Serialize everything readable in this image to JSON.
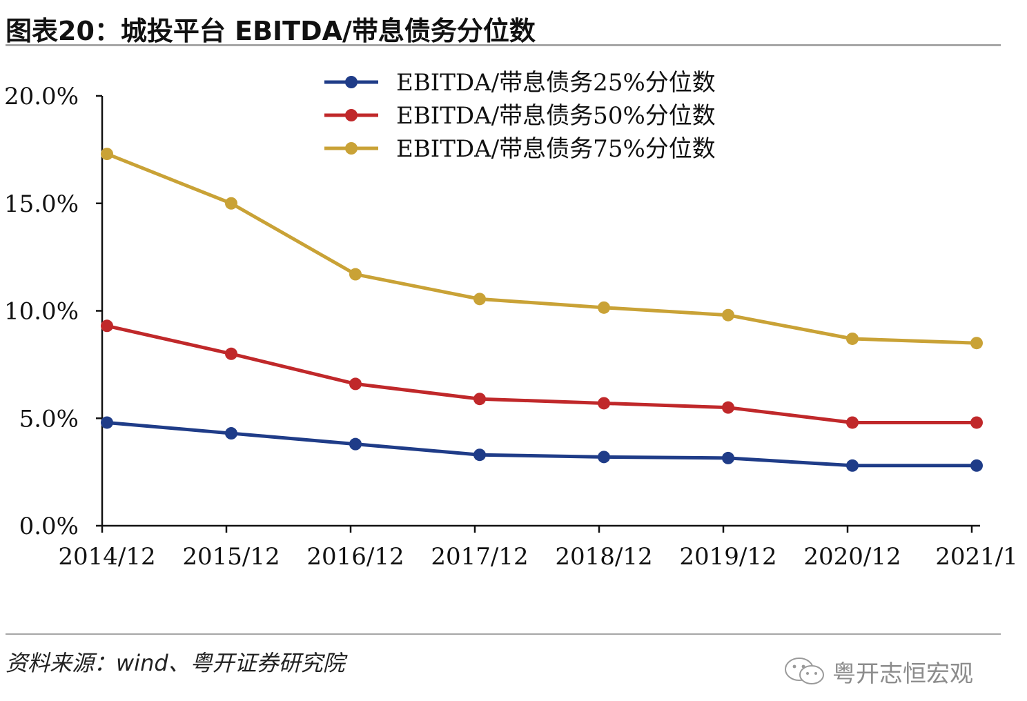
{
  "header": {
    "title": "图表20：城投平台 EBITDA/带息债务分位数"
  },
  "footer": {
    "source": "资料来源：wind、粤开证券研究院",
    "watermark": "粤开志恒宏观"
  },
  "chart_data": {
    "type": "line",
    "title": "城投平台 EBITDA/带息债务分位数",
    "xlabel": "",
    "ylabel": "",
    "ylim": [
      0,
      20
    ],
    "y_ticks": [
      "0.0%",
      "5.0%",
      "10.0%",
      "15.0%",
      "20.0%"
    ],
    "y_tick_values": [
      0,
      5,
      10,
      15,
      20
    ],
    "categories": [
      "2014/12",
      "2015/12",
      "2016/12",
      "2017/12",
      "2018/12",
      "2019/12",
      "2020/12",
      "2021/1"
    ],
    "legend_position": "top-center",
    "grid": false,
    "series": [
      {
        "name": "EBITDA/带息债务25%分位数",
        "color": "#1f3c88",
        "values": [
          4.8,
          4.3,
          3.8,
          3.3,
          3.2,
          3.15,
          2.8,
          2.8
        ]
      },
      {
        "name": "EBITDA/带息债务50%分位数",
        "color": "#c0282a",
        "values": [
          9.3,
          8.0,
          6.6,
          5.9,
          5.7,
          5.5,
          4.8,
          4.8
        ]
      },
      {
        "name": "EBITDA/带息债务75%分位数",
        "color": "#c9a236",
        "values": [
          17.3,
          15.0,
          11.7,
          10.55,
          10.15,
          9.8,
          8.7,
          8.5
        ]
      }
    ]
  }
}
